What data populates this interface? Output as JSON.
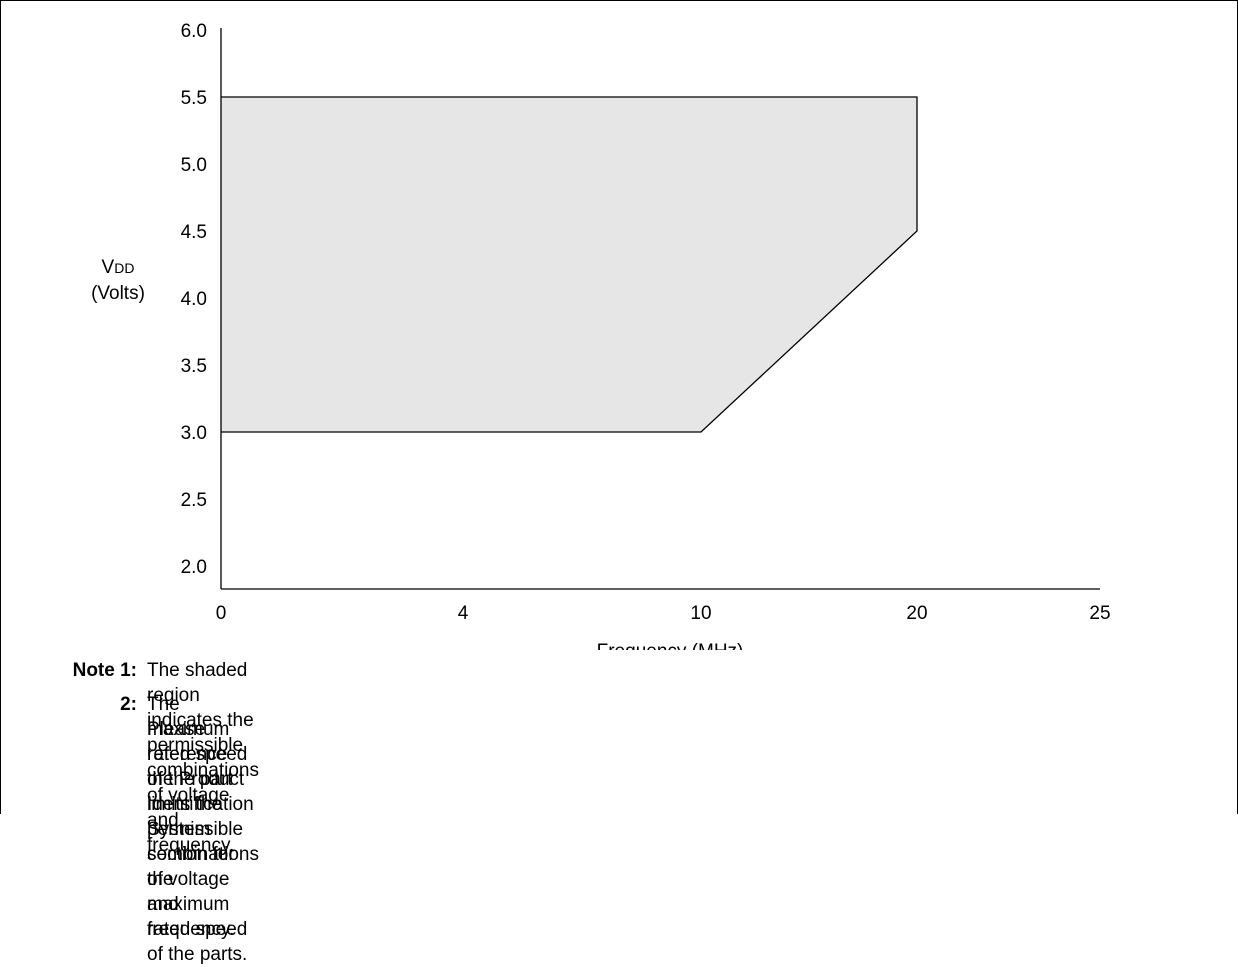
{
  "chart_data": {
    "type": "area",
    "xlabel": "Frequency (MHz)",
    "ylabel_main": "V",
    "ylabel_sub": "DD",
    "ylabel_units": "(Volts)",
    "x_ticks": [
      {
        "value": 0,
        "label": "0"
      },
      {
        "value": 4,
        "label": "4"
      },
      {
        "value": 10,
        "label": "10"
      },
      {
        "value": 20,
        "label": "20"
      },
      {
        "value": 25,
        "label": "25"
      }
    ],
    "y_ticks": [
      "2.0",
      "2.5",
      "3.0",
      "3.5",
      "4.0",
      "4.5",
      "5.0",
      "5.5",
      "6.0"
    ],
    "ylim": [
      2.0,
      6.0
    ],
    "region": {
      "fill": "#e6e6e6",
      "stroke": "#000000",
      "points": [
        {
          "x": 0,
          "y": 3.0
        },
        {
          "x": 0,
          "y": 5.5
        },
        {
          "x": 20,
          "y": 5.5
        },
        {
          "x": 20,
          "y": 4.5
        },
        {
          "x": 10,
          "y": 3.0
        }
      ]
    }
  },
  "notes": [
    {
      "label": "Note 1:",
      "lines": [
        "The shaded region indicates the permissible combinations of voltage and frequency."
      ]
    },
    {
      "label": "2:",
      "lines": [
        "The maximum rated speed of the part limits the permissible combinations of voltage and frequency.",
        "Please reference the Product Identification System section for the maximum rated speed of the parts."
      ]
    }
  ]
}
